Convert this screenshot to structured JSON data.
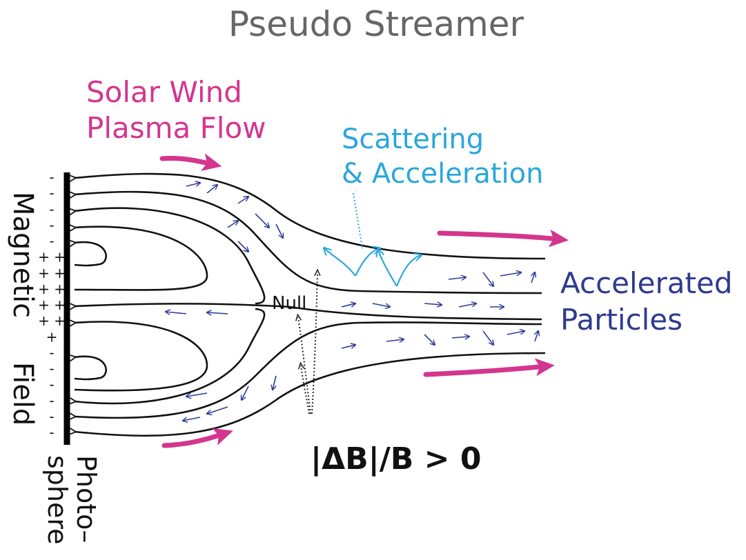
{
  "title": "Pseudo Streamer",
  "flow_label": [
    "Solar Wind",
    "Plasma Flow"
  ],
  "scatter_label": [
    "Scattering",
    "& Acceleration"
  ],
  "particles_label": [
    "Accelerated",
    "Particles"
  ],
  "null_label": "Null",
  "gradient_label": "|ΔB|/B > 0",
  "field_label": [
    "Magnetic",
    "Field"
  ],
  "photosphere_label": [
    "Photo–",
    "sphere"
  ],
  "signs": [
    "-",
    "-",
    "-",
    "-",
    "-",
    "+ +",
    "+ +",
    "+ +",
    "+ +",
    "+ +",
    "+",
    "-",
    "-",
    "-",
    "-",
    "-",
    "-"
  ]
}
